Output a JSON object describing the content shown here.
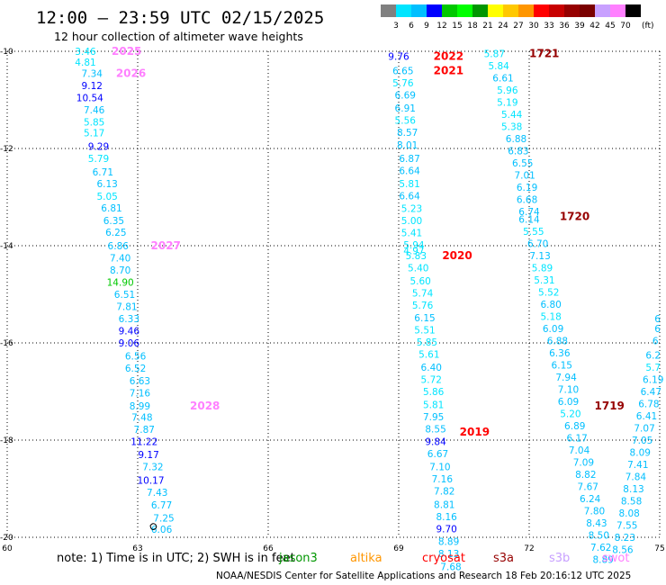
{
  "header": {
    "title": "12:00 – 23:59 UTC 02/15/2025",
    "subtitle": "12 hour collection of altimeter wave heights"
  },
  "legend": {
    "unit": "(ft)",
    "ticks": [
      "3",
      "6",
      "9",
      "12",
      "15",
      "18",
      "21",
      "24",
      "27",
      "30",
      "33",
      "36",
      "39",
      "42",
      "45",
      "70"
    ],
    "colors": [
      "#808080",
      "#00e5ff",
      "#00bfff",
      "#0000ff",
      "#00c800",
      "#00ff00",
      "#009600",
      "#ffff00",
      "#ffc800",
      "#ff9600",
      "#ff0000",
      "#c80000",
      "#960000",
      "#7a0000",
      "#c8a0ff",
      "#ff80ff",
      "#000000"
    ]
  },
  "footer": {
    "note": "note:  1) Time is in UTC; 2) SWH is in feet",
    "credit": "NOAA/NESDIS Center for Satellite Applications and Research    18 Feb 20:16:12 UTC 2025"
  },
  "satellites": [
    {
      "name": "jason3",
      "color": "#009600"
    },
    {
      "name": "altika",
      "color": "#ff9600"
    },
    {
      "name": "cryosat",
      "color": "#ff0000"
    },
    {
      "name": "s3a",
      "color": "#960000"
    },
    {
      "name": "s3b",
      "color": "#c8a0ff"
    },
    {
      "name": "swot",
      "color": "#ff80ff"
    }
  ],
  "chart_data": {
    "type": "scatter",
    "title": "12:00 – 23:59 UTC 02/15/2025",
    "xlim": [
      60,
      75
    ],
    "ylim": [
      -20,
      -10
    ],
    "x_ticks": [
      "60",
      "63",
      "66",
      "69",
      "72",
      "75"
    ],
    "y_ticks": [
      "-10",
      "-12",
      "-14",
      "-16",
      "-18",
      "-20"
    ],
    "grid": true,
    "passes": [
      {
        "satellite": "swot",
        "color": "#ff80ff",
        "labels": [
          {
            "x": 62.4,
            "y": -10.0,
            "text": "2025"
          },
          {
            "x": 62.5,
            "y": -10.45,
            "text": "2026"
          },
          {
            "x": 63.3,
            "y": -14.0,
            "text": "2027"
          },
          {
            "x": 64.2,
            "y": -17.3,
            "text": "2028"
          }
        ],
        "points": [
          {
            "x": 61.8,
            "y": -10.0,
            "v": "3.46"
          },
          {
            "x": 61.8,
            "y": -10.22,
            "v": "4.81"
          },
          {
            "x": 61.95,
            "y": -10.45,
            "v": "7.34"
          },
          {
            "x": 61.95,
            "y": -10.7,
            "v": "9.12"
          },
          {
            "x": 61.9,
            "y": -10.95,
            "v": "10.54"
          },
          {
            "x": 62.0,
            "y": -11.2,
            "v": "7.46"
          },
          {
            "x": 62.0,
            "y": -11.45,
            "v": "5.85"
          },
          {
            "x": 62.0,
            "y": -11.68,
            "v": "5.17"
          },
          {
            "x": 62.1,
            "y": -11.95,
            "v": "9.29"
          },
          {
            "x": 62.1,
            "y": -12.2,
            "v": "5.79"
          },
          {
            "x": 62.2,
            "y": -12.48,
            "v": "6.71"
          },
          {
            "x": 62.3,
            "y": -12.72,
            "v": "6.13"
          },
          {
            "x": 62.3,
            "y": -12.98,
            "v": "5.05"
          },
          {
            "x": 62.4,
            "y": -13.22,
            "v": "6.81"
          },
          {
            "x": 62.45,
            "y": -13.48,
            "v": "6.35"
          },
          {
            "x": 62.5,
            "y": -13.72,
            "v": "6.25"
          },
          {
            "x": 62.55,
            "y": -14.0,
            "v": "6.86"
          },
          {
            "x": 62.6,
            "y": -14.25,
            "v": "7.40"
          },
          {
            "x": 62.6,
            "y": -14.5,
            "v": "8.70"
          },
          {
            "x": 62.6,
            "y": -14.75,
            "v": "14.90"
          },
          {
            "x": 62.7,
            "y": -15.0,
            "v": "6.51"
          },
          {
            "x": 62.75,
            "y": -15.25,
            "v": "7.81"
          },
          {
            "x": 62.8,
            "y": -15.5,
            "v": "6.33"
          },
          {
            "x": 62.8,
            "y": -15.75,
            "v": "9.46"
          },
          {
            "x": 62.8,
            "y": -16.0,
            "v": "9.06"
          },
          {
            "x": 62.95,
            "y": -16.27,
            "v": "6.56"
          },
          {
            "x": 62.95,
            "y": -16.52,
            "v": "6.52"
          },
          {
            "x": 63.05,
            "y": -16.78,
            "v": "6.63"
          },
          {
            "x": 63.05,
            "y": -17.03,
            "v": "7.16"
          },
          {
            "x": 63.05,
            "y": -17.3,
            "v": "8.99"
          },
          {
            "x": 63.1,
            "y": -17.53,
            "v": "7.48"
          },
          {
            "x": 63.15,
            "y": -17.78,
            "v": "7.87"
          },
          {
            "x": 63.15,
            "y": -18.03,
            "v": "11.22"
          },
          {
            "x": 63.25,
            "y": -18.3,
            "v": "9.17"
          },
          {
            "x": 63.35,
            "y": -18.55,
            "v": "7.32"
          },
          {
            "x": 63.3,
            "y": -18.82,
            "v": "10.17"
          },
          {
            "x": 63.45,
            "y": -19.07,
            "v": "7.43"
          },
          {
            "x": 63.55,
            "y": -19.33,
            "v": "6.77"
          },
          {
            "x": 63.6,
            "y": -19.6,
            "v": "7.25"
          },
          {
            "x": 63.55,
            "y": -19.83,
            "v": "6.06"
          }
        ]
      },
      {
        "satellite": "cryosat",
        "color": "#ff0000",
        "labels": [
          {
            "x": 69.8,
            "y": -10.1,
            "text": "2022"
          },
          {
            "x": 69.8,
            "y": -10.4,
            "text": "2021"
          },
          {
            "x": 70.0,
            "y": -14.2,
            "text": "2020"
          },
          {
            "x": 70.4,
            "y": -17.83,
            "text": "2019"
          }
        ],
        "points": [
          {
            "x": 69.0,
            "y": -10.1,
            "v": "9.76"
          },
          {
            "x": 69.1,
            "y": -10.4,
            "v": "6.65"
          },
          {
            "x": 69.1,
            "y": -10.65,
            "v": "5.76"
          },
          {
            "x": 69.15,
            "y": -10.9,
            "v": "6.69"
          },
          {
            "x": 69.15,
            "y": -11.17,
            "v": "6.91"
          },
          {
            "x": 69.15,
            "y": -11.42,
            "v": "5.56"
          },
          {
            "x": 69.2,
            "y": -11.67,
            "v": "8.57"
          },
          {
            "x": 69.2,
            "y": -11.93,
            "v": "8.01"
          },
          {
            "x": 69.25,
            "y": -12.2,
            "v": "6.87"
          },
          {
            "x": 69.25,
            "y": -12.45,
            "v": "6.64"
          },
          {
            "x": 69.25,
            "y": -12.72,
            "v": "5.81"
          },
          {
            "x": 69.25,
            "y": -12.97,
            "v": "6.64"
          },
          {
            "x": 69.3,
            "y": -13.23,
            "v": "5.23"
          },
          {
            "x": 69.3,
            "y": -13.48,
            "v": "5.00"
          },
          {
            "x": 69.3,
            "y": -13.73,
            "v": "5.41"
          },
          {
            "x": 69.35,
            "y": -13.98,
            "v": "5.94"
          },
          {
            "x": 69.35,
            "y": -14.1,
            "v": "4.97"
          },
          {
            "x": 69.4,
            "y": -14.2,
            "v": "5.83"
          },
          {
            "x": 69.45,
            "y": -14.45,
            "v": "5.40"
          },
          {
            "x": 69.5,
            "y": -14.72,
            "v": "5.60"
          },
          {
            "x": 69.55,
            "y": -14.97,
            "v": "5.74"
          },
          {
            "x": 69.55,
            "y": -15.22,
            "v": "5.76"
          },
          {
            "x": 69.6,
            "y": -15.48,
            "v": "6.15"
          },
          {
            "x": 69.6,
            "y": -15.73,
            "v": "5.51"
          },
          {
            "x": 69.65,
            "y": -15.98,
            "v": "5.85"
          },
          {
            "x": 69.7,
            "y": -16.23,
            "v": "5.61"
          },
          {
            "x": 69.75,
            "y": -16.5,
            "v": "6.40"
          },
          {
            "x": 69.75,
            "y": -16.75,
            "v": "5.72"
          },
          {
            "x": 69.8,
            "y": -17.0,
            "v": "5.86"
          },
          {
            "x": 69.8,
            "y": -17.27,
            "v": "5.81"
          },
          {
            "x": 69.8,
            "y": -17.52,
            "v": "7.95"
          },
          {
            "x": 69.85,
            "y": -17.77,
            "v": "8.55"
          },
          {
            "x": 69.85,
            "y": -18.03,
            "v": "9.84"
          },
          {
            "x": 69.9,
            "y": -18.28,
            "v": "6.67"
          },
          {
            "x": 69.95,
            "y": -18.55,
            "v": "7.10"
          },
          {
            "x": 70.0,
            "y": -18.8,
            "v": "7.16"
          },
          {
            "x": 70.05,
            "y": -19.05,
            "v": "7.82"
          },
          {
            "x": 70.05,
            "y": -19.32,
            "v": "8.81"
          },
          {
            "x": 70.1,
            "y": -19.57,
            "v": "8.16"
          },
          {
            "x": 70.1,
            "y": -19.82,
            "v": "9.70"
          },
          {
            "x": 70.15,
            "y": -20.08,
            "v": "8.89"
          },
          {
            "x": 70.15,
            "y": -20.33,
            "v": "8.13"
          },
          {
            "x": 70.2,
            "y": -20.6,
            "v": "7.68"
          }
        ]
      },
      {
        "satellite": "s3a",
        "color": "#960000",
        "labels": [
          {
            "x": 72.0,
            "y": -10.05,
            "text": "1721"
          },
          {
            "x": 72.7,
            "y": -13.4,
            "text": "1720"
          },
          {
            "x": 73.5,
            "y": -17.3,
            "text": "1719"
          }
        ],
        "points": [
          {
            "x": 71.2,
            "y": -10.05,
            "v": "5.87"
          },
          {
            "x": 71.3,
            "y": -10.3,
            "v": "5.84"
          },
          {
            "x": 71.4,
            "y": -10.55,
            "v": "6.61"
          },
          {
            "x": 71.5,
            "y": -10.8,
            "v": "5.96"
          },
          {
            "x": 71.5,
            "y": -11.05,
            "v": "5.19"
          },
          {
            "x": 71.6,
            "y": -11.3,
            "v": "5.44"
          },
          {
            "x": 71.6,
            "y": -11.55,
            "v": "5.38"
          },
          {
            "x": 71.7,
            "y": -11.8,
            "v": "6.88"
          },
          {
            "x": 71.75,
            "y": -12.05,
            "v": "6.83"
          },
          {
            "x": 71.85,
            "y": -12.3,
            "v": "6.55"
          },
          {
            "x": 71.9,
            "y": -12.55,
            "v": "7.01"
          },
          {
            "x": 71.95,
            "y": -12.8,
            "v": "6.19"
          },
          {
            "x": 71.95,
            "y": -13.05,
            "v": "6.68"
          },
          {
            "x": 72.0,
            "y": -13.3,
            "v": "6.74"
          },
          {
            "x": 72.0,
            "y": -13.45,
            "v": "6.14"
          },
          {
            "x": 72.1,
            "y": -13.7,
            "v": "5.55"
          },
          {
            "x": 72.2,
            "y": -13.95,
            "v": "6.70"
          },
          {
            "x": 72.25,
            "y": -14.2,
            "v": "7.13"
          },
          {
            "x": 72.3,
            "y": -14.45,
            "v": "5.89"
          },
          {
            "x": 72.35,
            "y": -14.7,
            "v": "5.31"
          },
          {
            "x": 72.45,
            "y": -14.95,
            "v": "5.52"
          },
          {
            "x": 72.5,
            "y": -15.2,
            "v": "6.80"
          },
          {
            "x": 72.5,
            "y": -15.45,
            "v": "5.18"
          },
          {
            "x": 72.55,
            "y": -15.7,
            "v": "6.09"
          },
          {
            "x": 72.65,
            "y": -15.95,
            "v": "6.88"
          },
          {
            "x": 72.7,
            "y": -16.2,
            "v": "6.36"
          },
          {
            "x": 72.75,
            "y": -16.45,
            "v": "6.15"
          },
          {
            "x": 72.85,
            "y": -16.7,
            "v": "7.94"
          },
          {
            "x": 72.9,
            "y": -16.95,
            "v": "7.10"
          },
          {
            "x": 72.9,
            "y": -17.2,
            "v": "6.09"
          },
          {
            "x": 72.95,
            "y": -17.45,
            "v": "5.20"
          },
          {
            "x": 73.05,
            "y": -17.7,
            "v": "6.89"
          },
          {
            "x": 73.1,
            "y": -17.95,
            "v": "6.17"
          },
          {
            "x": 73.15,
            "y": -18.2,
            "v": "7.04"
          },
          {
            "x": 73.25,
            "y": -18.45,
            "v": "7.09"
          },
          {
            "x": 73.3,
            "y": -18.7,
            "v": "8.82"
          },
          {
            "x": 73.35,
            "y": -18.95,
            "v": "7.67"
          },
          {
            "x": 73.4,
            "y": -19.2,
            "v": "6.24"
          },
          {
            "x": 73.5,
            "y": -19.45,
            "v": "7.80"
          },
          {
            "x": 73.55,
            "y": -19.7,
            "v": "8.43"
          },
          {
            "x": 73.6,
            "y": -19.95,
            "v": "8.50"
          },
          {
            "x": 73.65,
            "y": -20.2,
            "v": "7.62"
          },
          {
            "x": 73.7,
            "y": -20.45,
            "v": "8.89"
          }
        ]
      },
      {
        "satellite": "s3b",
        "color": "#c8a0ff",
        "labels": [],
        "points": [
          {
            "x": 74.95,
            "y": -15.5,
            "v": "6"
          },
          {
            "x": 74.95,
            "y": -15.7,
            "v": "6"
          },
          {
            "x": 74.9,
            "y": -15.95,
            "v": "6"
          },
          {
            "x": 74.85,
            "y": -16.25,
            "v": "6.2"
          },
          {
            "x": 74.85,
            "y": -16.5,
            "v": "5.7"
          },
          {
            "x": 74.85,
            "y": -16.75,
            "v": "6.19"
          },
          {
            "x": 74.8,
            "y": -17.0,
            "v": "6.47"
          },
          {
            "x": 74.75,
            "y": -17.25,
            "v": "6.78"
          },
          {
            "x": 74.7,
            "y": -17.5,
            "v": "6.41"
          },
          {
            "x": 74.65,
            "y": -17.75,
            "v": "7.07"
          },
          {
            "x": 74.6,
            "y": -18.0,
            "v": "7.05"
          },
          {
            "x": 74.55,
            "y": -18.25,
            "v": "8.09"
          },
          {
            "x": 74.5,
            "y": -18.5,
            "v": "7.41"
          },
          {
            "x": 74.45,
            "y": -18.75,
            "v": "7.84"
          },
          {
            "x": 74.4,
            "y": -19.0,
            "v": "8.13"
          },
          {
            "x": 74.35,
            "y": -19.25,
            "v": "8.58"
          },
          {
            "x": 74.3,
            "y": -19.5,
            "v": "8.08"
          },
          {
            "x": 74.25,
            "y": -19.75,
            "v": "7.55"
          },
          {
            "x": 74.2,
            "y": -20.0,
            "v": "8.23"
          },
          {
            "x": 74.15,
            "y": -20.25,
            "v": "8.56"
          }
        ]
      }
    ]
  }
}
